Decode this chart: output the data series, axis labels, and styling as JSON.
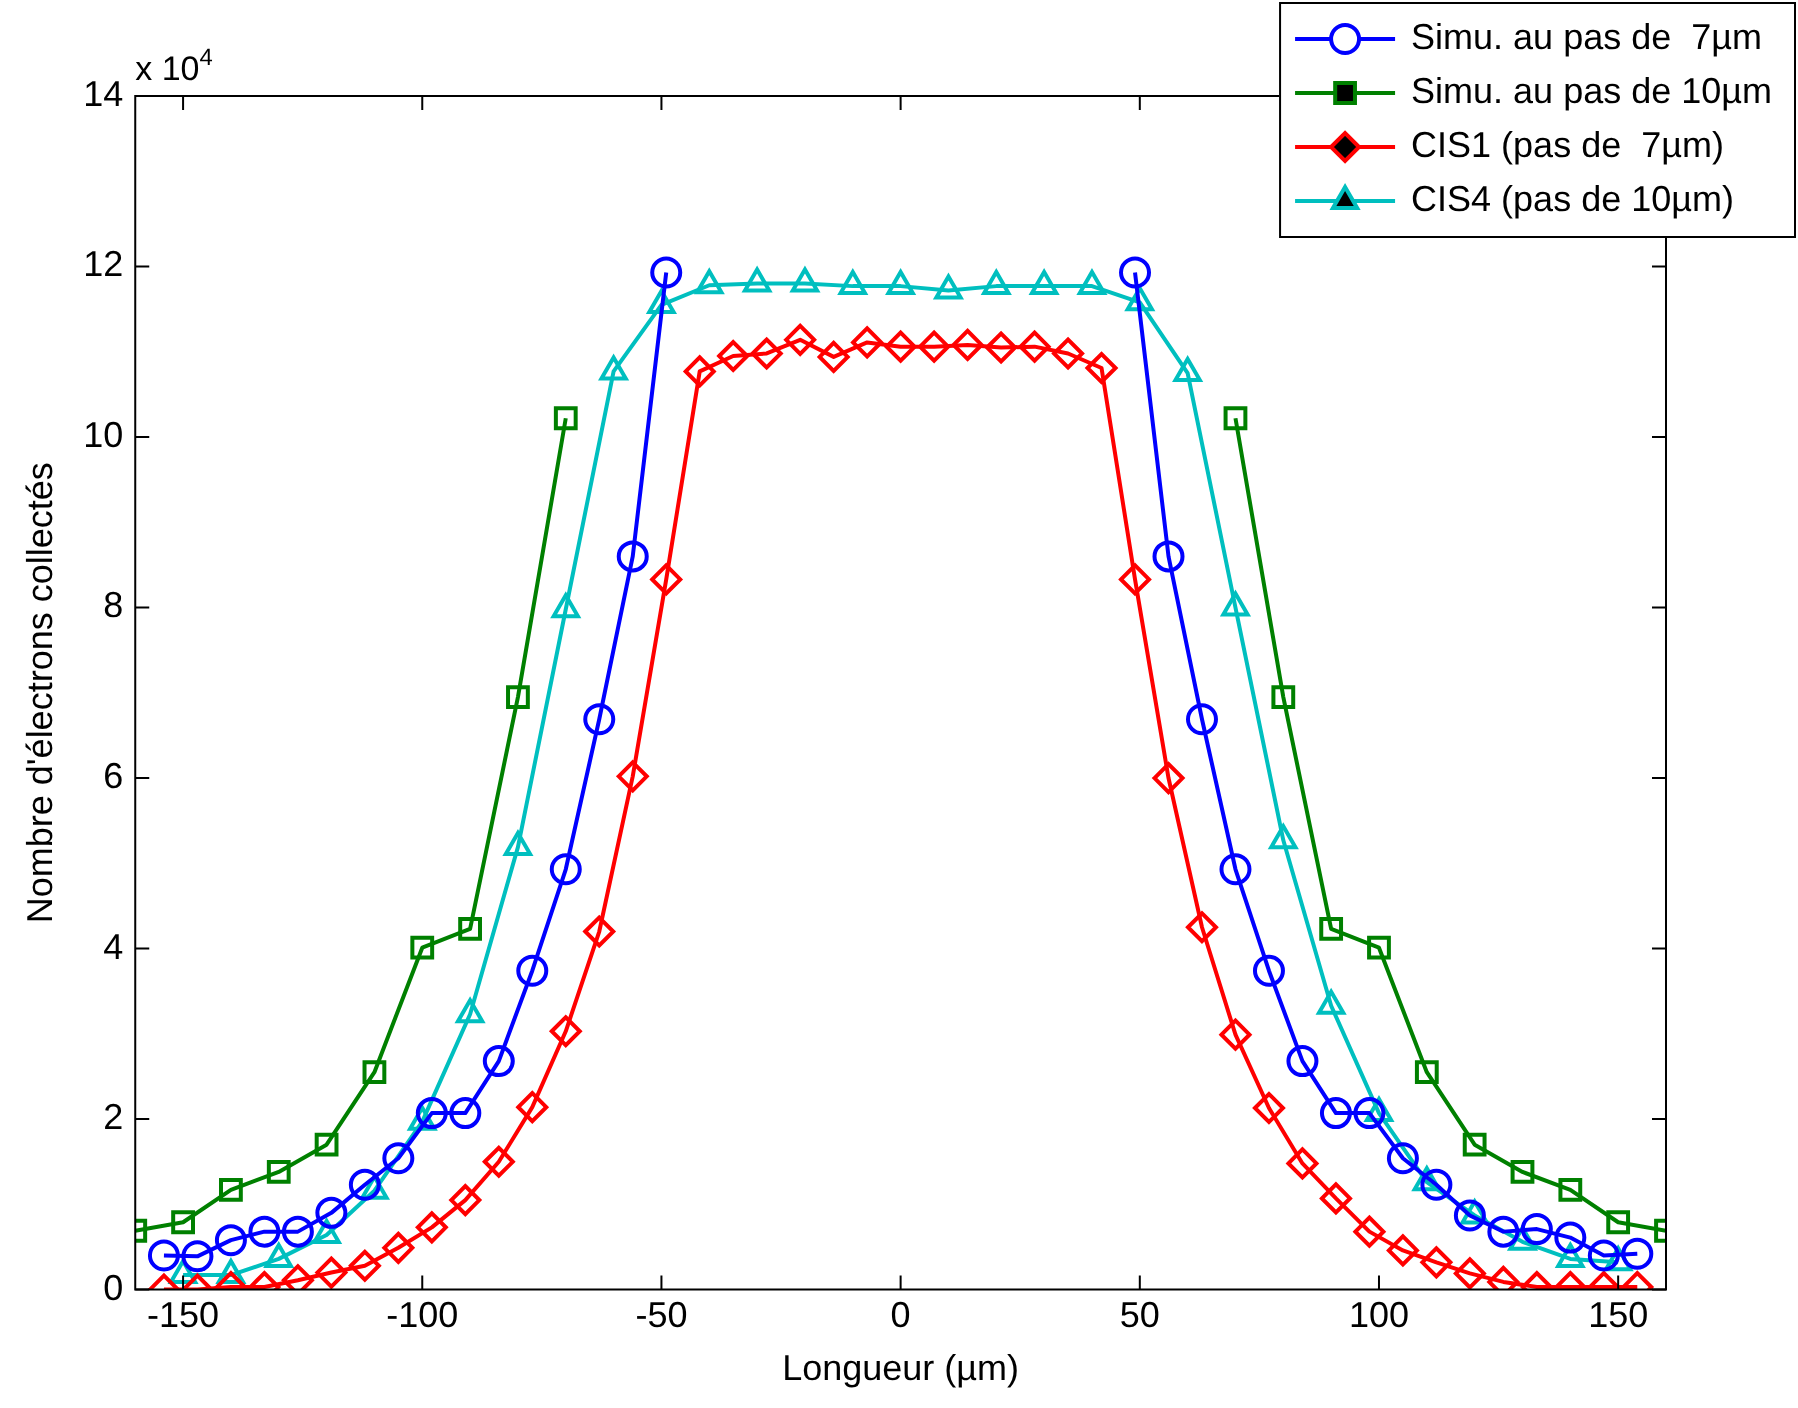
{
  "chart_data": {
    "type": "line",
    "xlabel": "Longueur (µm)",
    "ylabel": "Nombre d'électrons collectés",
    "annotations": [
      "x 10$^{4}$"
    ],
    "xlim": [
      -160,
      160
    ],
    "xticks": [
      -150,
      -100,
      -50,
      0,
      50,
      100,
      150
    ],
    "ylim": [
      0,
      14
    ],
    "yticks": [
      0,
      2,
      4,
      6,
      8,
      10,
      12,
      14
    ],
    "grid": false,
    "legend": "top right",
    "line_style": "solid",
    "series": [
      {
        "name": "Simu. au pas de  7µm",
        "color": "#0000ff",
        "marker": "circle",
        "x": [
          -154,
          -147,
          -140,
          -133,
          -126,
          -119,
          -112,
          -105,
          -98,
          -91,
          -84,
          -77,
          -70,
          -63,
          -56,
          -49,
          -42,
          -35,
          -28,
          -21,
          -14,
          -7,
          0,
          7,
          14,
          21,
          28,
          35,
          42,
          49,
          56,
          63,
          70,
          77,
          84,
          91,
          98,
          105,
          112,
          119,
          126,
          133,
          140,
          147,
          154
        ],
        "values": [
          0.4,
          0.39,
          0.58,
          0.68,
          0.68,
          0.9,
          1.23,
          1.54,
          2.07,
          2.07,
          2.68,
          3.74,
          4.93,
          6.69,
          8.6,
          11.93,
          null,
          null,
          null,
          null,
          null,
          null,
          null,
          null,
          null,
          null,
          null,
          null,
          null,
          11.93,
          8.6,
          6.69,
          4.93,
          3.74,
          2.68,
          2.07,
          2.07,
          1.54,
          1.23,
          0.87,
          0.68,
          0.71,
          0.61,
          0.4,
          0.42
        ]
      },
      {
        "name": "Simu. au pas de 10µm",
        "color": "#008000",
        "marker": "square",
        "x": [
          -160,
          -150,
          -140,
          -130,
          -120,
          -110,
          -100,
          -90,
          -80,
          -70,
          -60,
          -50,
          -40,
          -30,
          -20,
          -10,
          0,
          10,
          20,
          30,
          40,
          50,
          60,
          70,
          80,
          90,
          100,
          110,
          120,
          130,
          140,
          150,
          160
        ],
        "values": [
          0.69,
          0.79,
          1.17,
          1.38,
          1.7,
          2.55,
          4.01,
          4.23,
          6.95,
          10.22,
          null,
          null,
          null,
          null,
          null,
          null,
          null,
          null,
          null,
          null,
          null,
          null,
          null,
          10.22,
          6.95,
          4.23,
          4.01,
          2.55,
          1.7,
          1.38,
          1.17,
          0.79,
          0.69
        ]
      },
      {
        "name": "CIS1 (pas de  7µm)",
        "color": "#ff0000",
        "marker": "diamond",
        "x": [
          -154,
          -147,
          -140,
          -133,
          -126,
          -119,
          -112,
          -105,
          -98,
          -91,
          -84,
          -77,
          -70,
          -63,
          -56,
          -49,
          -42,
          -35,
          -28,
          -21,
          -14,
          -7,
          0,
          7,
          14,
          21,
          28,
          35,
          42,
          49,
          56,
          63,
          70,
          77,
          84,
          91,
          98,
          105,
          112,
          119,
          126,
          133,
          140,
          147,
          154
        ],
        "values": [
          0,
          0,
          0.03,
          0.03,
          0.11,
          0.2,
          0.28,
          0.49,
          0.73,
          1.05,
          1.5,
          2.14,
          3.03,
          4.2,
          6.02,
          8.33,
          10.77,
          10.95,
          10.98,
          11.14,
          10.94,
          11.11,
          11.06,
          11.06,
          11.08,
          11.05,
          11.06,
          10.98,
          10.81,
          8.33,
          6.0,
          4.25,
          2.99,
          2.13,
          1.48,
          1.07,
          0.68,
          0.46,
          0.32,
          0.19,
          0.09,
          0.03,
          0.03,
          0.03,
          0.03
        ]
      },
      {
        "name": "CIS4 (pas de 10µm)",
        "color": "#00bfbf",
        "marker": "triangle",
        "x": [
          -150,
          -140,
          -130,
          -120,
          -110,
          -100,
          -90,
          -80,
          -70,
          -60,
          -50,
          -40,
          -30,
          -20,
          -10,
          0,
          10,
          20,
          30,
          40,
          50,
          60,
          70,
          80,
          90,
          100,
          110,
          120,
          130,
          140,
          150
        ],
        "values": [
          0.17,
          0.17,
          0.36,
          0.64,
          1.16,
          1.97,
          3.23,
          5.19,
          7.98,
          10.77,
          11.55,
          11.78,
          11.8,
          11.8,
          11.77,
          11.77,
          11.72,
          11.77,
          11.77,
          11.77,
          11.58,
          10.75,
          8.0,
          5.27,
          3.33,
          2.07,
          1.26,
          0.87,
          0.56,
          0.36,
          0.32
        ]
      }
    ]
  }
}
